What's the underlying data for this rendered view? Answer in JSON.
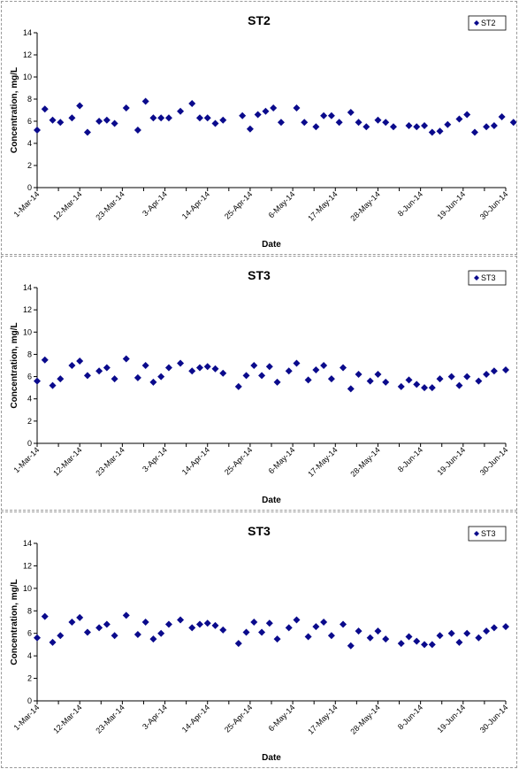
{
  "colors": {
    "marker": "#0a0a8c",
    "axis": "#000000",
    "frame": "#9a9a9a"
  },
  "chart_data": [
    {
      "type": "scatter",
      "title": "ST2",
      "xlabel": "Date",
      "ylabel": "Concentration, mg/L",
      "ylim": [
        0,
        14
      ],
      "yticks": [
        0,
        2,
        4,
        6,
        8,
        10,
        12,
        14
      ],
      "xlim": [
        "2014-03-01",
        "2014-06-30"
      ],
      "xticks": [
        "1-Mar-14",
        "12-Mar-14",
        "23-Mar-14",
        "3-Apr-14",
        "14-Apr-14",
        "25-Apr-14",
        "6-May-14",
        "17-May-14",
        "28-May-14",
        "8-Jun-14",
        "19-Jun-14",
        "30-Jun-14"
      ],
      "grid": false,
      "legend": "top-right",
      "series": [
        {
          "name": "ST2",
          "marker": "diamond",
          "points": [
            [
              "2014-03-01",
              5.2
            ],
            [
              "2014-03-03",
              7.1
            ],
            [
              "2014-03-05",
              6.1
            ],
            [
              "2014-03-07",
              5.9
            ],
            [
              "2014-03-10",
              6.3
            ],
            [
              "2014-03-12",
              7.4
            ],
            [
              "2014-03-14",
              5.0
            ],
            [
              "2014-03-17",
              6.0
            ],
            [
              "2014-03-19",
              6.1
            ],
            [
              "2014-03-21",
              5.8
            ],
            [
              "2014-03-24",
              7.2
            ],
            [
              "2014-03-27",
              5.2
            ],
            [
              "2014-03-29",
              7.8
            ],
            [
              "2014-03-31",
              6.3
            ],
            [
              "2014-04-02",
              6.3
            ],
            [
              "2014-04-04",
              6.3
            ],
            [
              "2014-04-07",
              6.9
            ],
            [
              "2014-04-10",
              7.6
            ],
            [
              "2014-04-12",
              6.3
            ],
            [
              "2014-04-14",
              6.3
            ],
            [
              "2014-04-16",
              5.8
            ],
            [
              "2014-04-18",
              6.1
            ],
            [
              "2014-04-23",
              6.5
            ],
            [
              "2014-04-25",
              5.3
            ],
            [
              "2014-04-27",
              6.6
            ],
            [
              "2014-04-29",
              6.9
            ],
            [
              "2014-05-01",
              7.2
            ],
            [
              "2014-05-03",
              5.9
            ],
            [
              "2014-05-07",
              7.2
            ],
            [
              "2014-05-09",
              5.9
            ],
            [
              "2014-05-12",
              5.5
            ],
            [
              "2014-05-14",
              6.5
            ],
            [
              "2014-05-16",
              6.5
            ],
            [
              "2014-05-18",
              5.9
            ],
            [
              "2014-05-21",
              6.8
            ],
            [
              "2014-05-23",
              5.9
            ],
            [
              "2014-05-25",
              5.5
            ],
            [
              "2014-05-28",
              6.1
            ],
            [
              "2014-05-30",
              5.9
            ],
            [
              "2014-06-01",
              5.5
            ],
            [
              "2014-06-05",
              5.6
            ],
            [
              "2014-06-07",
              5.5
            ],
            [
              "2014-06-09",
              5.6
            ],
            [
              "2014-06-11",
              5.0
            ],
            [
              "2014-06-13",
              5.1
            ],
            [
              "2014-06-15",
              5.7
            ],
            [
              "2014-06-18",
              6.2
            ],
            [
              "2014-06-20",
              6.6
            ],
            [
              "2014-06-22",
              5.0
            ],
            [
              "2014-06-25",
              5.5
            ],
            [
              "2014-06-27",
              5.6
            ],
            [
              "2014-06-29",
              6.4
            ],
            [
              "2014-07-02",
              5.9
            ]
          ]
        }
      ]
    },
    {
      "type": "scatter",
      "title": "ST3",
      "xlabel": "Date",
      "ylabel": "Concentration, mg/L",
      "ylim": [
        0,
        14
      ],
      "yticks": [
        0,
        2,
        4,
        6,
        8,
        10,
        12,
        14
      ],
      "xlim": [
        "2014-03-01",
        "2014-06-30"
      ],
      "xticks": [
        "1-Mar-14",
        "12-Mar-14",
        "23-Mar-14",
        "3-Apr-14",
        "14-Apr-14",
        "25-Apr-14",
        "6-May-14",
        "17-May-14",
        "28-May-14",
        "8-Jun-14",
        "19-Jun-14",
        "30-Jun-14"
      ],
      "grid": false,
      "legend": "top-right",
      "series": [
        {
          "name": "ST3",
          "marker": "diamond",
          "points": [
            [
              "2014-03-01",
              5.6
            ],
            [
              "2014-03-03",
              7.5
            ],
            [
              "2014-03-05",
              5.2
            ],
            [
              "2014-03-07",
              5.8
            ],
            [
              "2014-03-10",
              7.0
            ],
            [
              "2014-03-12",
              7.4
            ],
            [
              "2014-03-14",
              6.1
            ],
            [
              "2014-03-17",
              6.5
            ],
            [
              "2014-03-19",
              6.8
            ],
            [
              "2014-03-21",
              5.8
            ],
            [
              "2014-03-24",
              7.6
            ],
            [
              "2014-03-27",
              5.9
            ],
            [
              "2014-03-29",
              7.0
            ],
            [
              "2014-03-31",
              5.5
            ],
            [
              "2014-04-02",
              6.0
            ],
            [
              "2014-04-04",
              6.8
            ],
            [
              "2014-04-07",
              7.2
            ],
            [
              "2014-04-10",
              6.5
            ],
            [
              "2014-04-12",
              6.8
            ],
            [
              "2014-04-14",
              6.9
            ],
            [
              "2014-04-16",
              6.7
            ],
            [
              "2014-04-18",
              6.3
            ],
            [
              "2014-04-22",
              5.1
            ],
            [
              "2014-04-24",
              6.1
            ],
            [
              "2014-04-26",
              7.0
            ],
            [
              "2014-04-28",
              6.1
            ],
            [
              "2014-04-30",
              6.9
            ],
            [
              "2014-05-02",
              5.5
            ],
            [
              "2014-05-05",
              6.5
            ],
            [
              "2014-05-07",
              7.2
            ],
            [
              "2014-05-10",
              5.7
            ],
            [
              "2014-05-12",
              6.6
            ],
            [
              "2014-05-14",
              7.0
            ],
            [
              "2014-05-16",
              5.8
            ],
            [
              "2014-05-19",
              6.8
            ],
            [
              "2014-05-21",
              4.9
            ],
            [
              "2014-05-23",
              6.2
            ],
            [
              "2014-05-26",
              5.6
            ],
            [
              "2014-05-28",
              6.2
            ],
            [
              "2014-05-30",
              5.5
            ],
            [
              "2014-06-03",
              5.1
            ],
            [
              "2014-06-05",
              5.7
            ],
            [
              "2014-06-07",
              5.3
            ],
            [
              "2014-06-09",
              5.0
            ],
            [
              "2014-06-11",
              5.0
            ],
            [
              "2014-06-13",
              5.8
            ],
            [
              "2014-06-16",
              6.0
            ],
            [
              "2014-06-18",
              5.2
            ],
            [
              "2014-06-20",
              6.0
            ],
            [
              "2014-06-23",
              5.6
            ],
            [
              "2014-06-25",
              6.2
            ],
            [
              "2014-06-27",
              6.5
            ],
            [
              "2014-06-30",
              6.6
            ]
          ]
        }
      ]
    },
    {
      "type": "scatter",
      "title": "ST3",
      "xlabel": "Date",
      "ylabel": "Concentration, mg/L",
      "ylim": [
        0,
        14
      ],
      "yticks": [
        0,
        2,
        4,
        6,
        8,
        10,
        12,
        14
      ],
      "xlim": [
        "2014-03-01",
        "2014-06-30"
      ],
      "xticks": [
        "1-Mar-14",
        "12-Mar-14",
        "23-Mar-14",
        "3-Apr-14",
        "14-Apr-14",
        "25-Apr-14",
        "6-May-14",
        "17-May-14",
        "28-May-14",
        "8-Jun-14",
        "19-Jun-14",
        "30-Jun-14"
      ],
      "grid": false,
      "legend": "top-right",
      "series": [
        {
          "name": "ST3",
          "marker": "diamond",
          "points": [
            [
              "2014-03-01",
              5.6
            ],
            [
              "2014-03-03",
              7.5
            ],
            [
              "2014-03-05",
              5.2
            ],
            [
              "2014-03-07",
              5.8
            ],
            [
              "2014-03-10",
              7.0
            ],
            [
              "2014-03-12",
              7.4
            ],
            [
              "2014-03-14",
              6.1
            ],
            [
              "2014-03-17",
              6.5
            ],
            [
              "2014-03-19",
              6.8
            ],
            [
              "2014-03-21",
              5.8
            ],
            [
              "2014-03-24",
              7.6
            ],
            [
              "2014-03-27",
              5.9
            ],
            [
              "2014-03-29",
              7.0
            ],
            [
              "2014-03-31",
              5.5
            ],
            [
              "2014-04-02",
              6.0
            ],
            [
              "2014-04-04",
              6.8
            ],
            [
              "2014-04-07",
              7.2
            ],
            [
              "2014-04-10",
              6.5
            ],
            [
              "2014-04-12",
              6.8
            ],
            [
              "2014-04-14",
              6.9
            ],
            [
              "2014-04-16",
              6.7
            ],
            [
              "2014-04-18",
              6.3
            ],
            [
              "2014-04-22",
              5.1
            ],
            [
              "2014-04-24",
              6.1
            ],
            [
              "2014-04-26",
              7.0
            ],
            [
              "2014-04-28",
              6.1
            ],
            [
              "2014-04-30",
              6.9
            ],
            [
              "2014-05-02",
              5.5
            ],
            [
              "2014-05-05",
              6.5
            ],
            [
              "2014-05-07",
              7.2
            ],
            [
              "2014-05-10",
              5.7
            ],
            [
              "2014-05-12",
              6.6
            ],
            [
              "2014-05-14",
              7.0
            ],
            [
              "2014-05-16",
              5.8
            ],
            [
              "2014-05-19",
              6.8
            ],
            [
              "2014-05-21",
              4.9
            ],
            [
              "2014-05-23",
              6.2
            ],
            [
              "2014-05-26",
              5.6
            ],
            [
              "2014-05-28",
              6.2
            ],
            [
              "2014-05-30",
              5.5
            ],
            [
              "2014-06-03",
              5.1
            ],
            [
              "2014-06-05",
              5.7
            ],
            [
              "2014-06-07",
              5.3
            ],
            [
              "2014-06-09",
              5.0
            ],
            [
              "2014-06-11",
              5.0
            ],
            [
              "2014-06-13",
              5.8
            ],
            [
              "2014-06-16",
              6.0
            ],
            [
              "2014-06-18",
              5.2
            ],
            [
              "2014-06-20",
              6.0
            ],
            [
              "2014-06-23",
              5.6
            ],
            [
              "2014-06-25",
              6.2
            ],
            [
              "2014-06-27",
              6.5
            ],
            [
              "2014-06-30",
              6.6
            ]
          ]
        }
      ]
    }
  ]
}
